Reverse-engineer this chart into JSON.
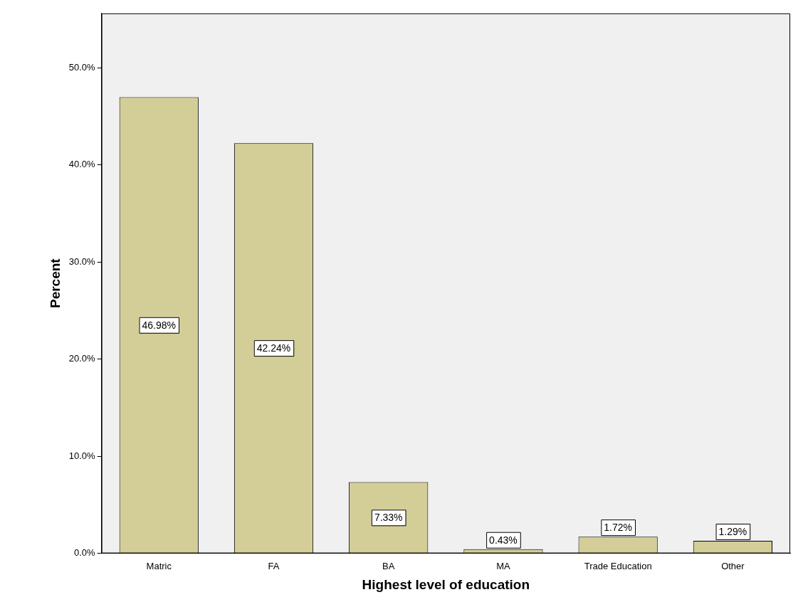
{
  "chart_data": {
    "type": "bar",
    "xlabel": "Highest level of education",
    "ylabel": "Percent",
    "categories": [
      "Matric",
      "FA",
      "BA",
      "MA",
      "Trade Education",
      "Other"
    ],
    "values": [
      46.98,
      42.24,
      7.33,
      0.43,
      1.72,
      1.29
    ],
    "value_labels": [
      "46.98%",
      "42.24%",
      "7.33%",
      "0.43%",
      "1.72%",
      "1.29%"
    ],
    "color": "#d3ce97",
    "ylim": [
      0,
      55.6
    ],
    "yticks": [
      {
        "value": 0,
        "label": "0.0%"
      },
      {
        "value": 10,
        "label": "10.0%"
      },
      {
        "value": 20,
        "label": "20.0%"
      },
      {
        "value": 30,
        "label": "30.0%"
      },
      {
        "value": 40,
        "label": "40.0%"
      },
      {
        "value": 50,
        "label": "50.0%"
      }
    ],
    "grid": false,
    "legend": false
  }
}
